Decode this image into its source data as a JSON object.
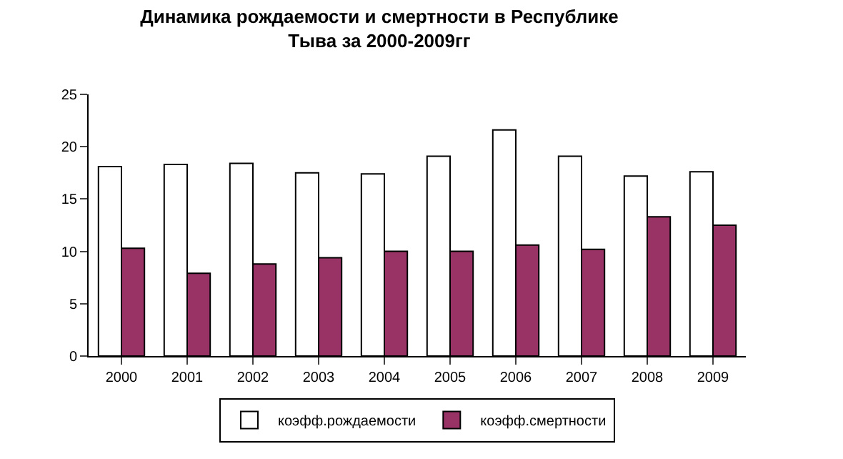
{
  "chart_data": {
    "type": "bar",
    "title": "Динамика рождаемости и смертности в Республике Тыва за 2000-2009гг",
    "categories": [
      "2000",
      "2001",
      "2002",
      "2003",
      "2004",
      "2005",
      "2006",
      "2007",
      "2008",
      "2009"
    ],
    "series": [
      {
        "name": "коэфф.рождаемости",
        "color": "#ffffff",
        "values": [
          18.1,
          18.3,
          18.4,
          17.5,
          17.4,
          19.1,
          21.6,
          19.1,
          17.2,
          17.6
        ]
      },
      {
        "name": "коэфф.смертности",
        "color": "#993366",
        "values": [
          10.3,
          7.9,
          8.8,
          9.4,
          10.0,
          10.0,
          10.6,
          10.2,
          13.3,
          12.5
        ]
      }
    ],
    "ylim": [
      0,
      25
    ],
    "yticks": [
      0,
      5,
      10,
      15,
      20,
      25
    ],
    "grid": false,
    "legend": "bottom"
  }
}
